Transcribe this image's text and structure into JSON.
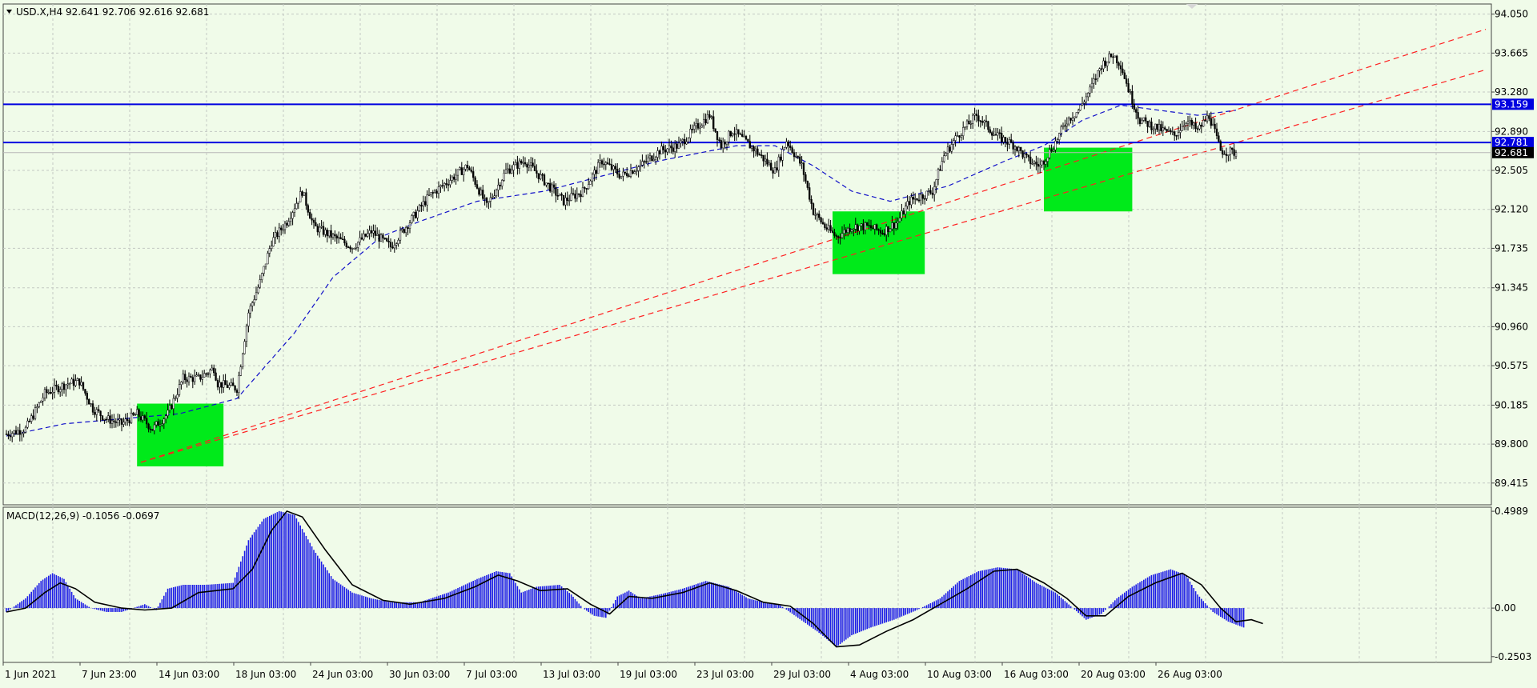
{
  "header": {
    "title": "USD.X,H4  92.641 92.706 92.616 92.681"
  },
  "colors": {
    "background": "#f0fbe9",
    "candle": "#000000",
    "ma_line": "#1010c8",
    "level_line": "#0000e0",
    "trend_line": "#ff2020",
    "zone": "#00ea1a",
    "macd_histogram": "#1d1de6",
    "macd_signal": "#000000",
    "price_tag": "#0000e0",
    "current_price_tag": "#000000"
  },
  "chart_data": [
    {
      "type": "candlestick",
      "symbol": "USD.X",
      "timeframe": "H4",
      "ohlc_current": {
        "open": 92.641,
        "high": 92.706,
        "low": 92.616,
        "close": 92.681
      },
      "ylim": [
        89.2,
        94.15
      ],
      "y_ticks": [
        "94.050",
        "93.665",
        "93.280",
        "92.890",
        "92.505",
        "92.120",
        "91.735",
        "91.345",
        "90.960",
        "90.575",
        "90.185",
        "89.800",
        "89.415"
      ],
      "x_ticks": [
        "1 Jun 2021",
        "7 Jun 23:00",
        "14 Jun 03:00",
        "18 Jun 03:00",
        "24 Jun 03:00",
        "30 Jun 03:00",
        "7 Jul 03:00",
        "13 Jul 03:00",
        "19 Jul 03:00",
        "23 Jul 03:00",
        "29 Jul 03:00",
        "4 Aug 03:00",
        "10 Aug 03:00",
        "16 Aug 03:00",
        "20 Aug 03:00",
        "26 Aug 03:00"
      ],
      "close_path": [
        [
          0,
          89.9
        ],
        [
          10,
          89.95
        ],
        [
          20,
          90.3
        ],
        [
          32,
          90.4
        ],
        [
          38,
          90.42
        ],
        [
          45,
          90.15
        ],
        [
          52,
          90.05
        ],
        [
          60,
          90.0
        ],
        [
          68,
          90.1
        ],
        [
          76,
          89.95
        ],
        [
          84,
          90.1
        ],
        [
          92,
          90.45
        ],
        [
          100,
          90.45
        ],
        [
          108,
          90.55
        ],
        [
          110,
          90.4
        ],
        [
          120,
          90.35
        ],
        [
          126,
          91.1
        ],
        [
          132,
          91.4
        ],
        [
          138,
          91.8
        ],
        [
          146,
          92.0
        ],
        [
          154,
          92.3
        ],
        [
          160,
          91.95
        ],
        [
          170,
          91.85
        ],
        [
          180,
          91.75
        ],
        [
          190,
          91.9
        ],
        [
          200,
          91.75
        ],
        [
          210,
          92.0
        ],
        [
          220,
          92.25
        ],
        [
          230,
          92.4
        ],
        [
          240,
          92.55
        ],
        [
          250,
          92.15
        ],
        [
          260,
          92.5
        ],
        [
          270,
          92.6
        ],
        [
          280,
          92.4
        ],
        [
          290,
          92.2
        ],
        [
          300,
          92.3
        ],
        [
          310,
          92.6
        ],
        [
          320,
          92.45
        ],
        [
          330,
          92.55
        ],
        [
          340,
          92.7
        ],
        [
          350,
          92.75
        ],
        [
          360,
          92.95
        ],
        [
          366,
          93.05
        ],
        [
          372,
          92.75
        ],
        [
          378,
          92.9
        ],
        [
          384,
          92.8
        ],
        [
          390,
          92.7
        ],
        [
          400,
          92.5
        ],
        [
          406,
          92.8
        ],
        [
          414,
          92.55
        ],
        [
          420,
          92.1
        ],
        [
          426,
          91.95
        ],
        [
          432,
          91.85
        ],
        [
          440,
          91.95
        ],
        [
          448,
          91.95
        ],
        [
          456,
          91.9
        ],
        [
          464,
          92.0
        ],
        [
          470,
          92.2
        ],
        [
          476,
          92.25
        ],
        [
          482,
          92.3
        ],
        [
          488,
          92.65
        ],
        [
          495,
          92.85
        ],
        [
          500,
          92.95
        ],
        [
          505,
          93.05
        ],
        [
          510,
          92.95
        ],
        [
          515,
          92.85
        ],
        [
          520,
          92.8
        ],
        [
          525,
          92.75
        ],
        [
          532,
          92.6
        ],
        [
          538,
          92.55
        ],
        [
          545,
          92.75
        ],
        [
          552,
          93.0
        ],
        [
          558,
          93.1
        ],
        [
          564,
          93.3
        ],
        [
          570,
          93.55
        ],
        [
          576,
          93.65
        ],
        [
          580,
          93.55
        ],
        [
          585,
          93.25
        ],
        [
          590,
          93.0
        ],
        [
          596,
          92.95
        ],
        [
          602,
          92.9
        ],
        [
          608,
          92.85
        ],
        [
          614,
          93.0
        ],
        [
          620,
          92.9
        ],
        [
          626,
          93.05
        ],
        [
          632,
          92.7
        ],
        [
          640,
          92.68
        ]
      ],
      "moving_average_path": [
        [
          0,
          89.88
        ],
        [
          30,
          90.0
        ],
        [
          60,
          90.05
        ],
        [
          90,
          90.1
        ],
        [
          120,
          90.25
        ],
        [
          150,
          90.9
        ],
        [
          170,
          91.45
        ],
        [
          195,
          91.85
        ],
        [
          215,
          92.0
        ],
        [
          245,
          92.2
        ],
        [
          280,
          92.3
        ],
        [
          310,
          92.45
        ],
        [
          340,
          92.6
        ],
        [
          380,
          92.75
        ],
        [
          400,
          92.75
        ],
        [
          420,
          92.55
        ],
        [
          440,
          92.3
        ],
        [
          460,
          92.2
        ],
        [
          490,
          92.35
        ],
        [
          520,
          92.6
        ],
        [
          540,
          92.75
        ],
        [
          560,
          93.0
        ],
        [
          580,
          93.15
        ],
        [
          600,
          93.1
        ],
        [
          620,
          93.05
        ],
        [
          640,
          93.1
        ]
      ],
      "levels": [
        {
          "value": 93.159,
          "label": "93.159"
        },
        {
          "value": 92.781,
          "label": "92.781"
        }
      ],
      "current_price": {
        "value": 92.681,
        "label": "92.681"
      },
      "trend_lines": [
        {
          "from": [
            70,
            89.62
          ],
          "to": [
            770,
            93.9
          ]
        },
        {
          "from": [
            70,
            89.62
          ],
          "to": [
            770,
            93.5
          ]
        }
      ],
      "zones": [
        {
          "x0": 68,
          "x1": 113,
          "y0": 89.58,
          "y1": 90.2
        },
        {
          "x0": 430,
          "x1": 478,
          "y0": 91.48,
          "y1": 92.1
        },
        {
          "x0": 540,
          "x1": 586,
          "y0": 92.1,
          "y1": 92.73
        }
      ]
    },
    {
      "type": "bar",
      "title": "MACD(12,26,9) -0.1056 -0.0697",
      "ylim": [
        -0.28,
        0.52
      ],
      "y_ticks": [
        "0.4989",
        "0.00",
        "-0.2503"
      ],
      "histogram": [
        [
          0,
          -0.02
        ],
        [
          10,
          0.05
        ],
        [
          18,
          0.14
        ],
        [
          24,
          0.18
        ],
        [
          30,
          0.15
        ],
        [
          36,
          0.05
        ],
        [
          44,
          0.0
        ],
        [
          52,
          -0.02
        ],
        [
          60,
          -0.02
        ],
        [
          66,
          0.0
        ],
        [
          72,
          0.02
        ],
        [
          78,
          -0.01
        ],
        [
          84,
          0.1
        ],
        [
          92,
          0.12
        ],
        [
          104,
          0.12
        ],
        [
          118,
          0.13
        ],
        [
          126,
          0.35
        ],
        [
          134,
          0.46
        ],
        [
          142,
          0.5
        ],
        [
          150,
          0.48
        ],
        [
          160,
          0.3
        ],
        [
          170,
          0.15
        ],
        [
          180,
          0.08
        ],
        [
          190,
          0.05
        ],
        [
          200,
          0.03
        ],
        [
          215,
          0.03
        ],
        [
          230,
          0.08
        ],
        [
          245,
          0.15
        ],
        [
          255,
          0.19
        ],
        [
          262,
          0.18
        ],
        [
          268,
          0.08
        ],
        [
          276,
          0.11
        ],
        [
          288,
          0.12
        ],
        [
          294,
          0.07
        ],
        [
          300,
          0.0
        ],
        [
          306,
          -0.04
        ],
        [
          312,
          -0.05
        ],
        [
          318,
          0.06
        ],
        [
          324,
          0.09
        ],
        [
          330,
          0.05
        ],
        [
          340,
          0.07
        ],
        [
          352,
          0.1
        ],
        [
          364,
          0.14
        ],
        [
          376,
          0.11
        ],
        [
          386,
          0.05
        ],
        [
          394,
          0.03
        ],
        [
          402,
          0.02
        ],
        [
          412,
          -0.05
        ],
        [
          422,
          -0.12
        ],
        [
          432,
          -0.2
        ],
        [
          440,
          -0.14
        ],
        [
          450,
          -0.1
        ],
        [
          462,
          -0.06
        ],
        [
          474,
          -0.01
        ],
        [
          486,
          0.05
        ],
        [
          496,
          0.14
        ],
        [
          506,
          0.19
        ],
        [
          516,
          0.21
        ],
        [
          526,
          0.2
        ],
        [
          536,
          0.13
        ],
        [
          546,
          0.08
        ],
        [
          554,
          0.01
        ],
        [
          562,
          -0.06
        ],
        [
          570,
          -0.03
        ],
        [
          578,
          0.05
        ],
        [
          586,
          0.11
        ],
        [
          596,
          0.17
        ],
        [
          606,
          0.2
        ],
        [
          614,
          0.17
        ],
        [
          620,
          0.07
        ],
        [
          628,
          -0.02
        ],
        [
          636,
          -0.07
        ],
        [
          644,
          -0.1
        ]
      ],
      "signal": [
        [
          0,
          -0.02
        ],
        [
          10,
          0.0
        ],
        [
          20,
          0.08
        ],
        [
          28,
          0.13
        ],
        [
          36,
          0.1
        ],
        [
          46,
          0.03
        ],
        [
          60,
          0.0
        ],
        [
          72,
          -0.01
        ],
        [
          86,
          0.0
        ],
        [
          100,
          0.08
        ],
        [
          118,
          0.1
        ],
        [
          128,
          0.2
        ],
        [
          138,
          0.4
        ],
        [
          146,
          0.5
        ],
        [
          154,
          0.47
        ],
        [
          166,
          0.3
        ],
        [
          180,
          0.12
        ],
        [
          196,
          0.04
        ],
        [
          210,
          0.02
        ],
        [
          228,
          0.05
        ],
        [
          244,
          0.11
        ],
        [
          256,
          0.17
        ],
        [
          266,
          0.14
        ],
        [
          278,
          0.09
        ],
        [
          292,
          0.1
        ],
        [
          304,
          0.02
        ],
        [
          314,
          -0.03
        ],
        [
          324,
          0.06
        ],
        [
          336,
          0.05
        ],
        [
          352,
          0.08
        ],
        [
          366,
          0.13
        ],
        [
          380,
          0.09
        ],
        [
          394,
          0.03
        ],
        [
          408,
          0.01
        ],
        [
          420,
          -0.08
        ],
        [
          432,
          -0.2
        ],
        [
          444,
          -0.19
        ],
        [
          458,
          -0.12
        ],
        [
          472,
          -0.06
        ],
        [
          486,
          0.02
        ],
        [
          500,
          0.1
        ],
        [
          514,
          0.19
        ],
        [
          526,
          0.2
        ],
        [
          540,
          0.13
        ],
        [
          552,
          0.05
        ],
        [
          562,
          -0.04
        ],
        [
          572,
          -0.04
        ],
        [
          584,
          0.06
        ],
        [
          598,
          0.13
        ],
        [
          612,
          0.18
        ],
        [
          622,
          0.12
        ],
        [
          632,
          0.0
        ],
        [
          640,
          -0.07
        ],
        [
          648,
          -0.06
        ],
        [
          654,
          -0.08
        ]
      ]
    }
  ]
}
